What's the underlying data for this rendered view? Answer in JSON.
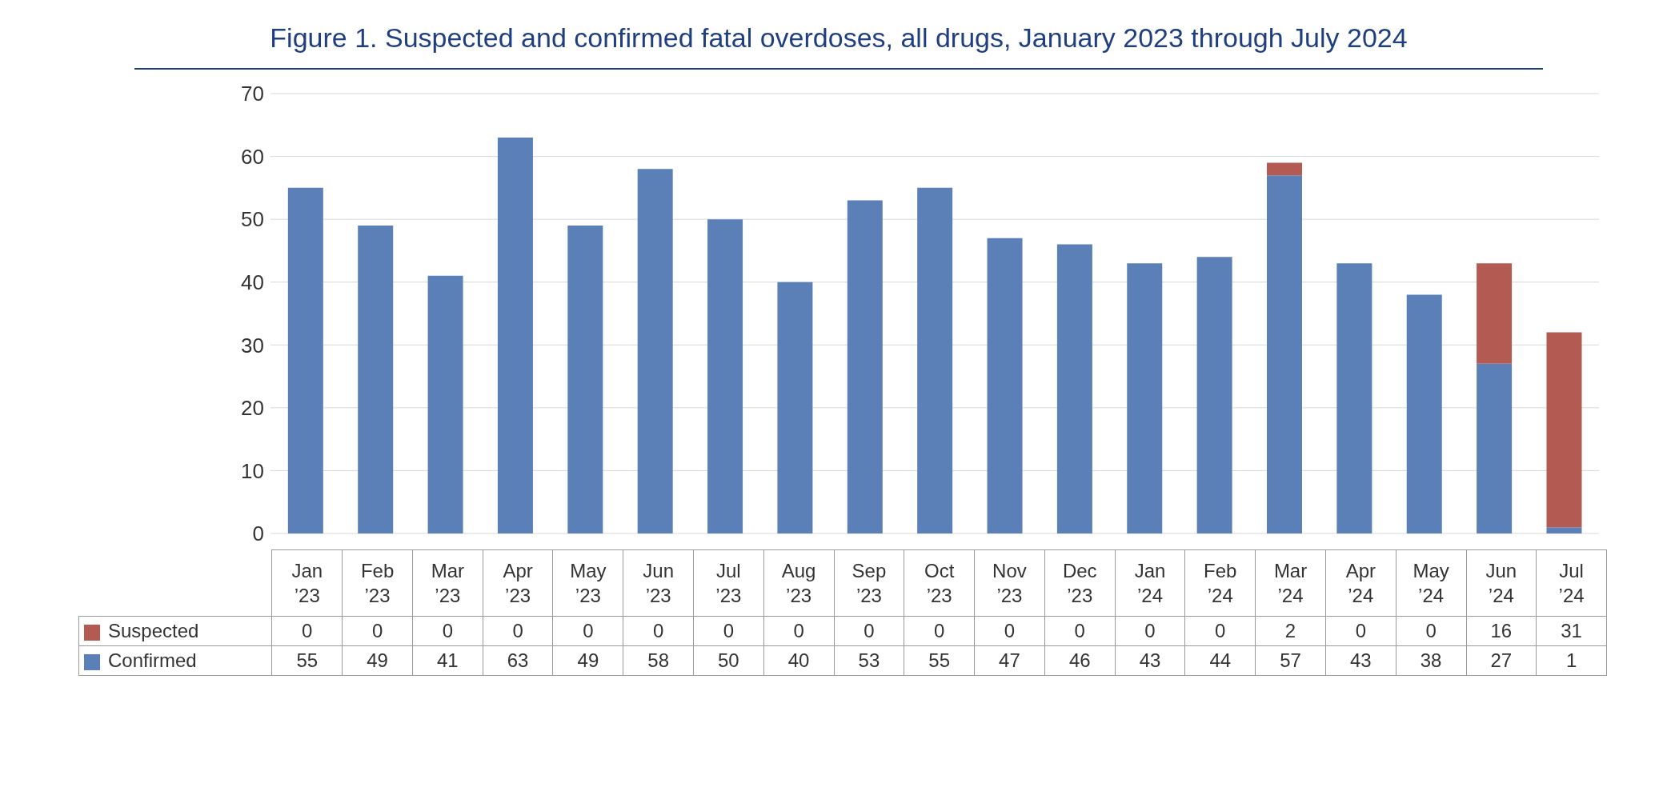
{
  "chart_data": {
    "type": "bar",
    "title": "Figure 1. Suspected and confirmed fatal overdoses, all drugs, January 2023 through July 2024",
    "categories": [
      "Jan ’23",
      "Feb ’23",
      "Mar ’23",
      "Apr ’23",
      "May ’23",
      "Jun ’23",
      "Jul ’23",
      "Aug ’23",
      "Sep ’23",
      "Oct ’23",
      "Nov ’23",
      "Dec ’23",
      "Jan ’24",
      "Feb ’24",
      "Mar ’24",
      "Apr ’24",
      "May ’24",
      "Jun ’24",
      "Jul ’24"
    ],
    "series": [
      {
        "name": "Confirmed",
        "color": "#5b80b8",
        "values": [
          55,
          49,
          41,
          63,
          49,
          58,
          50,
          40,
          53,
          55,
          47,
          46,
          43,
          44,
          57,
          43,
          38,
          27,
          1
        ]
      },
      {
        "name": "Suspected",
        "color": "#b35a52",
        "values": [
          0,
          0,
          0,
          0,
          0,
          0,
          0,
          0,
          0,
          0,
          0,
          0,
          0,
          0,
          2,
          0,
          0,
          16,
          31
        ]
      }
    ],
    "stacked": true,
    "ylim": [
      0,
      70
    ],
    "yticks": [
      0,
      10,
      20,
      30,
      40,
      50,
      60,
      70
    ],
    "grid": "y",
    "legend": "bottom",
    "data_labels": true
  }
}
